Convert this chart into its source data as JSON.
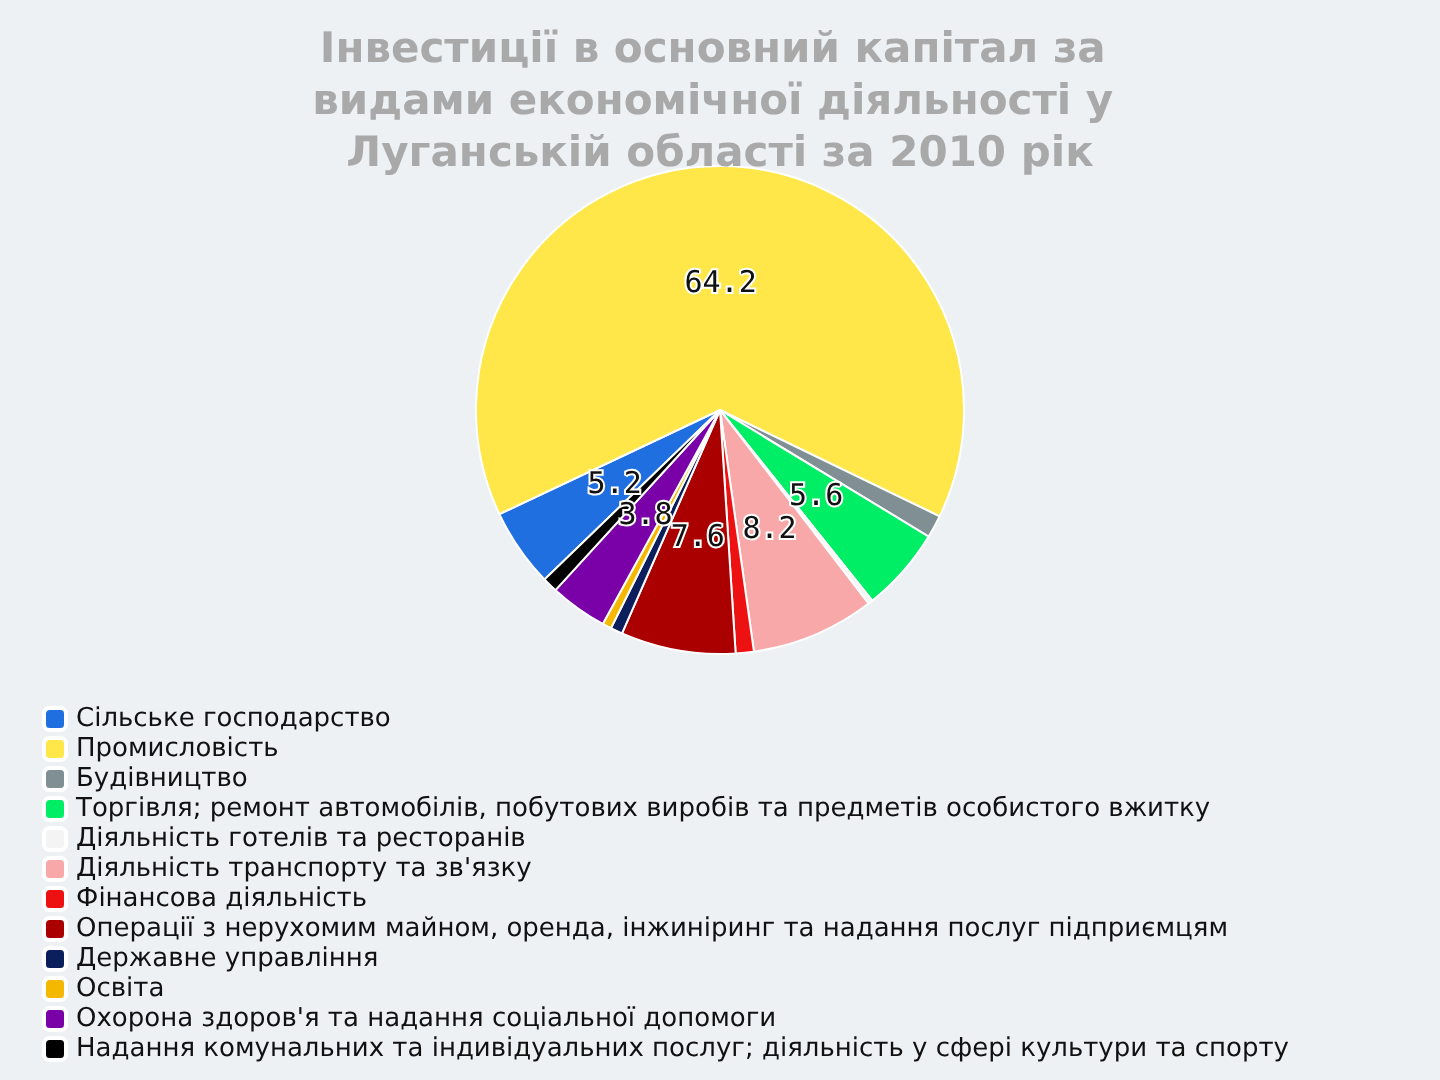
{
  "chart_data": {
    "type": "pie",
    "title": "Інвестиції в основний капітал за видами економічної діяльності у Луганській області за 2010 рік",
    "categories": [
      "Сільське господарство",
      "Промисловість",
      "Будівництво",
      "Торгівля; ремонт автомобілів, побутових виробів та предметів особистого вжитку",
      "Діяльність готелів та ресторанів",
      "Діяльність транспорту та зв'язку",
      "Фінансова діяльність",
      "Операції з нерухомим майном, оренда, інжиніринг та надання послуг підприємцям",
      "Державне управління",
      "Освіта",
      "Охорона здоров'я та надання соціальної допомоги",
      "Надання комунальних та індивідуальних послуг; діяльність у сфері культури та спорту"
    ],
    "values": [
      5.2,
      64.2,
      1.5,
      5.6,
      0.3,
      8.2,
      1.2,
      7.6,
      0.8,
      0.6,
      3.8,
      1.0
    ],
    "value_labels": [
      "5.2",
      "64.2",
      null,
      "5.6",
      null,
      "8.2",
      null,
      "7.6",
      null,
      null,
      "3.8",
      null
    ],
    "colors": [
      "#1f6fe0",
      "#ffe74a",
      "#7f8f94",
      "#00ee66",
      "#f4f4f4",
      "#f8a8a8",
      "#ee1111",
      "#aa0000",
      "#0a1f5c",
      "#f5b800",
      "#7a00a8",
      "#000000"
    ],
    "legend": "bottom left"
  }
}
